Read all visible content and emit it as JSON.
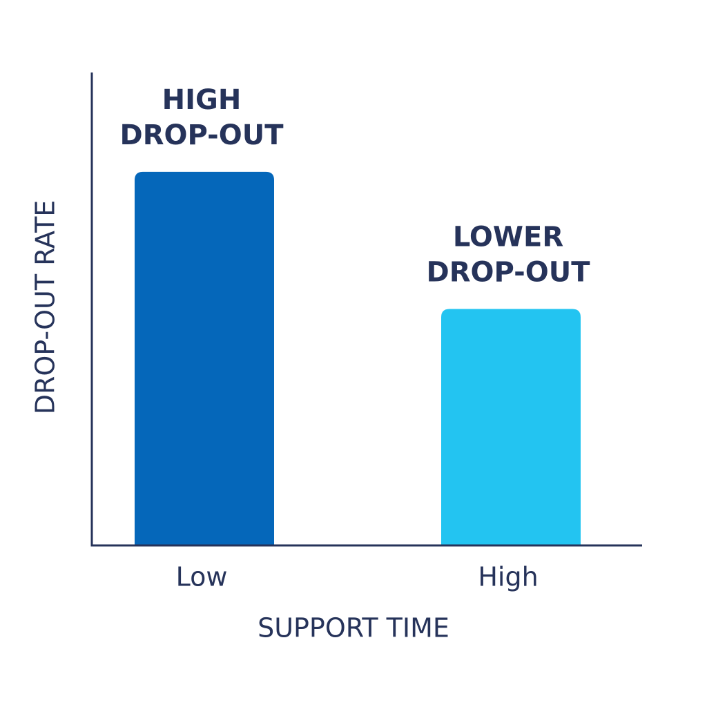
{
  "chart_data": {
    "type": "bar",
    "categories": [
      "Low",
      "High"
    ],
    "values": [
      79,
      50
    ],
    "colors": [
      "#0567ba",
      "#23c4f1"
    ],
    "annotations": [
      [
        "HIGH",
        "DROP-OUT"
      ],
      [
        "LOWER",
        "DROP-OUT"
      ]
    ],
    "xlabel": "SUPPORT TIME",
    "ylabel": "DROP-OUT RATE",
    "ylim": [
      0,
      100
    ],
    "grid": false
  }
}
